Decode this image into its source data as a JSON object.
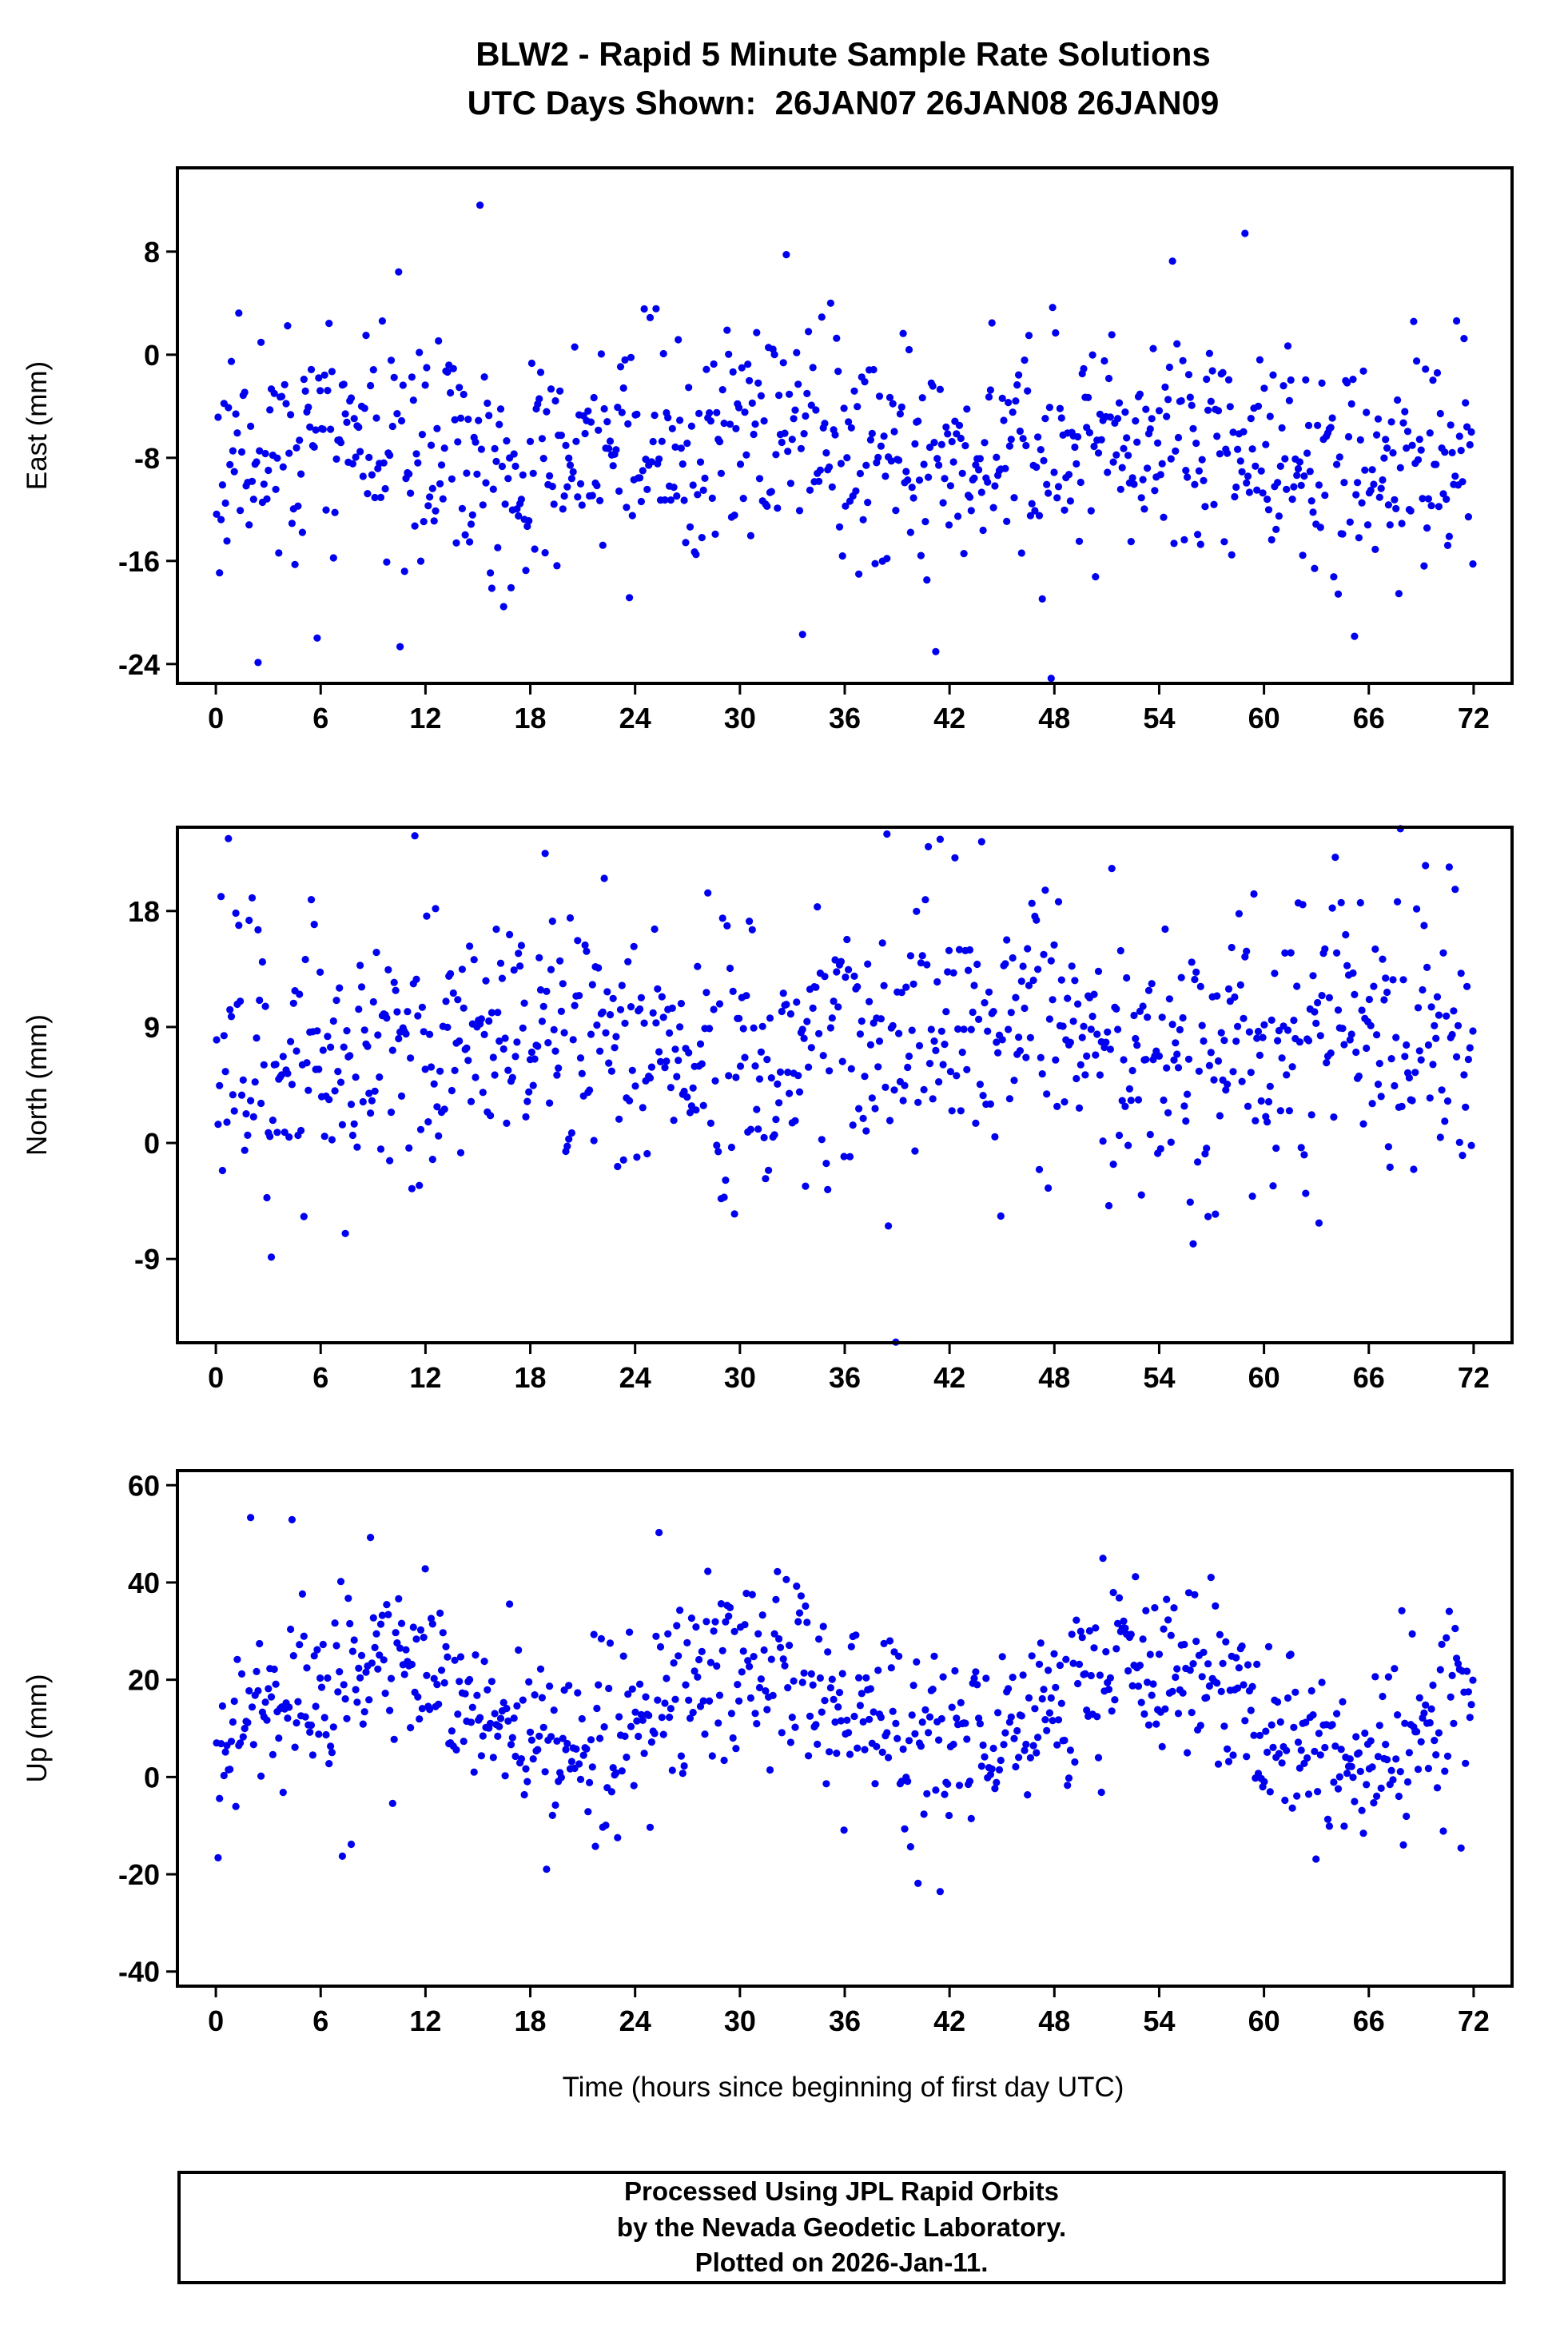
{
  "page": {
    "title_line1": "BLW2 - Rapid 5 Minute Sample Rate Solutions",
    "title_line2": "UTC Days Shown:  26JAN07 26JAN08 26JAN09",
    "x_axis_label": "Time (hours since beginning of first day UTC)",
    "footer_line1": "Processed Using JPL Rapid Orbits",
    "footer_line2": "by the Nevada Geodetic Laboratory.",
    "footer_line3": "Plotted on 2026-Jan-11."
  },
  "colors": {
    "point": "#0000ee",
    "axis": "#000000",
    "text": "#000000",
    "background": "#ffffff"
  },
  "chart_data": [
    {
      "type": "scatter",
      "name": "east",
      "ylabel": "East (mm)",
      "xlabel": "Time (hours since beginning of first day UTC)",
      "x_unit": "hours",
      "x_start": 0,
      "x_end": 72,
      "xlim": [
        -2.2,
        74.2
      ],
      "ylim": [
        -25.5,
        14.5
      ],
      "xticks": [
        0,
        6,
        12,
        18,
        24,
        30,
        36,
        42,
        48,
        54,
        60,
        66,
        72
      ],
      "yticks": [
        -24,
        -16,
        -8,
        0,
        8
      ],
      "n_points": 850,
      "mean": -7.5,
      "std": 4.3,
      "slope": 0,
      "wave_amp": 1.2,
      "wave_period": 24,
      "wave_phase": 0,
      "outlier_rate": 0.025,
      "outlier_mult": 2.6,
      "seed": 11,
      "marker_radius": 4.6,
      "grid": false,
      "legend": false
    },
    {
      "type": "scatter",
      "name": "north",
      "ylabel": "North (mm)",
      "xlabel": "Time (hours since beginning of first day UTC)",
      "x_unit": "hours",
      "x_start": 0,
      "x_end": 72,
      "xlim": [
        -2.2,
        74.2
      ],
      "ylim": [
        -15.5,
        24.5
      ],
      "xticks": [
        0,
        6,
        12,
        18,
        24,
        30,
        36,
        42,
        48,
        54,
        60,
        66,
        72
      ],
      "yticks": [
        -9,
        0,
        9,
        18
      ],
      "n_points": 850,
      "mean": 7.6,
      "std": 5.2,
      "slope": 0,
      "wave_amp": 1.5,
      "wave_period": 24,
      "wave_phase": 12,
      "outlier_rate": 0.025,
      "outlier_mult": 2.4,
      "seed": 22,
      "marker_radius": 4.6,
      "grid": false,
      "legend": false
    },
    {
      "type": "scatter",
      "name": "up",
      "ylabel": "Up (mm)",
      "xlabel": "Time (hours since beginning of first day UTC)",
      "x_unit": "hours",
      "x_start": 0,
      "x_end": 72,
      "xlim": [
        -2.2,
        74.2
      ],
      "ylim": [
        -43,
        63
      ],
      "xticks": [
        0,
        6,
        12,
        18,
        24,
        30,
        36,
        42,
        48,
        54,
        60,
        66,
        72
      ],
      "yticks": [
        -40,
        -20,
        0,
        20,
        40,
        60
      ],
      "n_points": 850,
      "mean": 14,
      "std": 9,
      "slope": -0.05,
      "wave_amp": 9,
      "wave_period": 22,
      "wave_phase": 4,
      "outlier_rate": 0.02,
      "outlier_mult": 2.2,
      "seed": 33,
      "marker_radius": 4.6,
      "grid": false,
      "legend": false
    }
  ]
}
